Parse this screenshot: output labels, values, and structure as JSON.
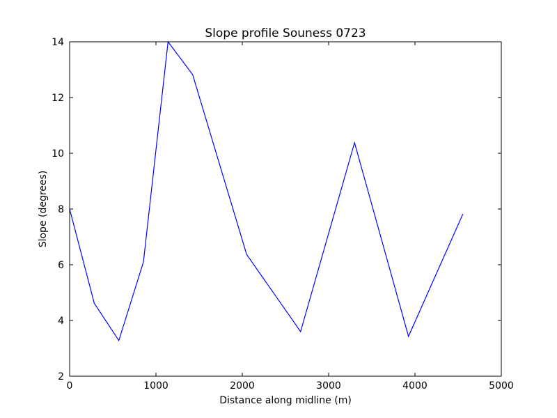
{
  "chart_data": {
    "type": "line",
    "title": "Slope profile Souness 0723",
    "xlabel": "Distance along midline (m)",
    "ylabel": "Slope (degrees)",
    "xlim": [
      0,
      5000
    ],
    "ylim": [
      2,
      14
    ],
    "xticks": [
      0,
      1000,
      2000,
      3000,
      4000,
      5000
    ],
    "yticks": [
      2,
      4,
      6,
      8,
      10,
      12,
      14
    ],
    "grid": false,
    "series": [
      {
        "color": "#0000ff",
        "x": [
          0,
          285,
          570,
          855,
          1140,
          1425,
          2050,
          2675,
          3300,
          3925,
          4555
        ],
        "y": [
          8.0,
          4.62,
          3.28,
          6.1,
          14.0,
          12.82,
          6.37,
          3.6,
          10.38,
          3.43,
          7.82
        ]
      }
    ]
  }
}
